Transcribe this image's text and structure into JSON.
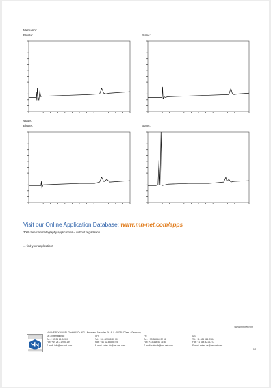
{
  "sections": [
    {
      "heading": "Methanol:",
      "left_label": "Eluate:",
      "right_label": "Blanc:"
    },
    {
      "heading": "Water:",
      "left_label": "Eluate:",
      "right_label": "Blanc:"
    }
  ],
  "chart_data": [
    {
      "type": "line",
      "label": "Methanol eluate",
      "series": [
        {
          "x": [
            0,
            0.07,
            0.075,
            0.08,
            0.085,
            0.09,
            0.1,
            0.11,
            0.115,
            0.12,
            0.13,
            0.2,
            0.4,
            0.6,
            0.7,
            0.72,
            0.74,
            0.76,
            0.8,
            1.0
          ],
          "y": [
            0.2,
            0.2,
            0.28,
            0.16,
            0.34,
            0.22,
            0.16,
            0.3,
            0.24,
            0.21,
            0.22,
            0.22,
            0.23,
            0.24,
            0.25,
            0.33,
            0.26,
            0.25,
            0.26,
            0.28
          ]
        }
      ]
    },
    {
      "type": "line",
      "label": "Methanol blanc",
      "series": [
        {
          "x": [
            0,
            0.1,
            0.14,
            0.145,
            0.15,
            0.16,
            0.17,
            0.2,
            0.4,
            0.6,
            0.8,
            0.82,
            0.835,
            0.85,
            0.9,
            1.0
          ],
          "y": [
            0.2,
            0.2,
            0.2,
            0.35,
            0.18,
            0.21,
            0.2,
            0.21,
            0.22,
            0.23,
            0.24,
            0.33,
            0.25,
            0.24,
            0.25,
            0.26
          ]
        }
      ]
    },
    {
      "type": "line",
      "label": "Water eluate",
      "series": [
        {
          "x": [
            0,
            0.1,
            0.12,
            0.125,
            0.13,
            0.14,
            0.3,
            0.5,
            0.65,
            0.7,
            0.72,
            0.74,
            0.75,
            0.77,
            0.8,
            0.9,
            1.0
          ],
          "y": [
            0.24,
            0.24,
            0.24,
            0.3,
            0.2,
            0.25,
            0.26,
            0.27,
            0.27,
            0.29,
            0.36,
            0.3,
            0.3,
            0.33,
            0.29,
            0.3,
            0.31
          ]
        }
      ]
    },
    {
      "type": "line",
      "label": "Water blanc",
      "series": [
        {
          "x": [
            0,
            0.08,
            0.1,
            0.11,
            0.12,
            0.13,
            0.14,
            0.2,
            0.4,
            0.6,
            0.75,
            0.77,
            0.78,
            0.8,
            0.82,
            0.85,
            1.0
          ],
          "y": [
            0.24,
            0.24,
            0.25,
            0.6,
            0.25,
            1.0,
            0.24,
            0.26,
            0.27,
            0.27,
            0.29,
            0.36,
            0.3,
            0.33,
            0.29,
            0.3,
            0.31
          ]
        }
      ]
    }
  ],
  "promo": {
    "headline": "Visit our Online Application Database: ",
    "url": "www.mn-net.com/apps",
    "line1": "3000 free chromatography applications – without registration",
    "line2": "... find your application!"
  },
  "footer": {
    "site": "www.mn-net.com",
    "company": "MACHEREY-NAGEL GmbH & Co. KG · Neumann-Neander-Str. 6–8 · 52355 Düren · Germany",
    "columns": [
      {
        "region": "DE / International:",
        "tel": "Tel.:    +49 24 21 969-0",
        "fax": "Fax:    +49 24 21 969-199",
        "email": "E-mail:   info@mn-net.com"
      },
      {
        "region": "CH:",
        "tel": "Tel.:    +41 62 388 55 00",
        "fax": "Fax:    +41 62 388 55 05",
        "email": "E-mail:   sales-ch@mn-net.com"
      },
      {
        "region": "FR:",
        "tel": "Tel.:    +33 388 68 22 68",
        "fax": "Fax:    +33 388 51 76 88",
        "email": "E-mail:   sales-fr@mn-net.com"
      },
      {
        "region": "US:",
        "tel": "Tel.:    +1 484 821 0984",
        "fax": "Fax:    +1 484 821 1272",
        "email": "E-mail:   sales-us@mn-net.com"
      }
    ],
    "page": "2/2"
  }
}
